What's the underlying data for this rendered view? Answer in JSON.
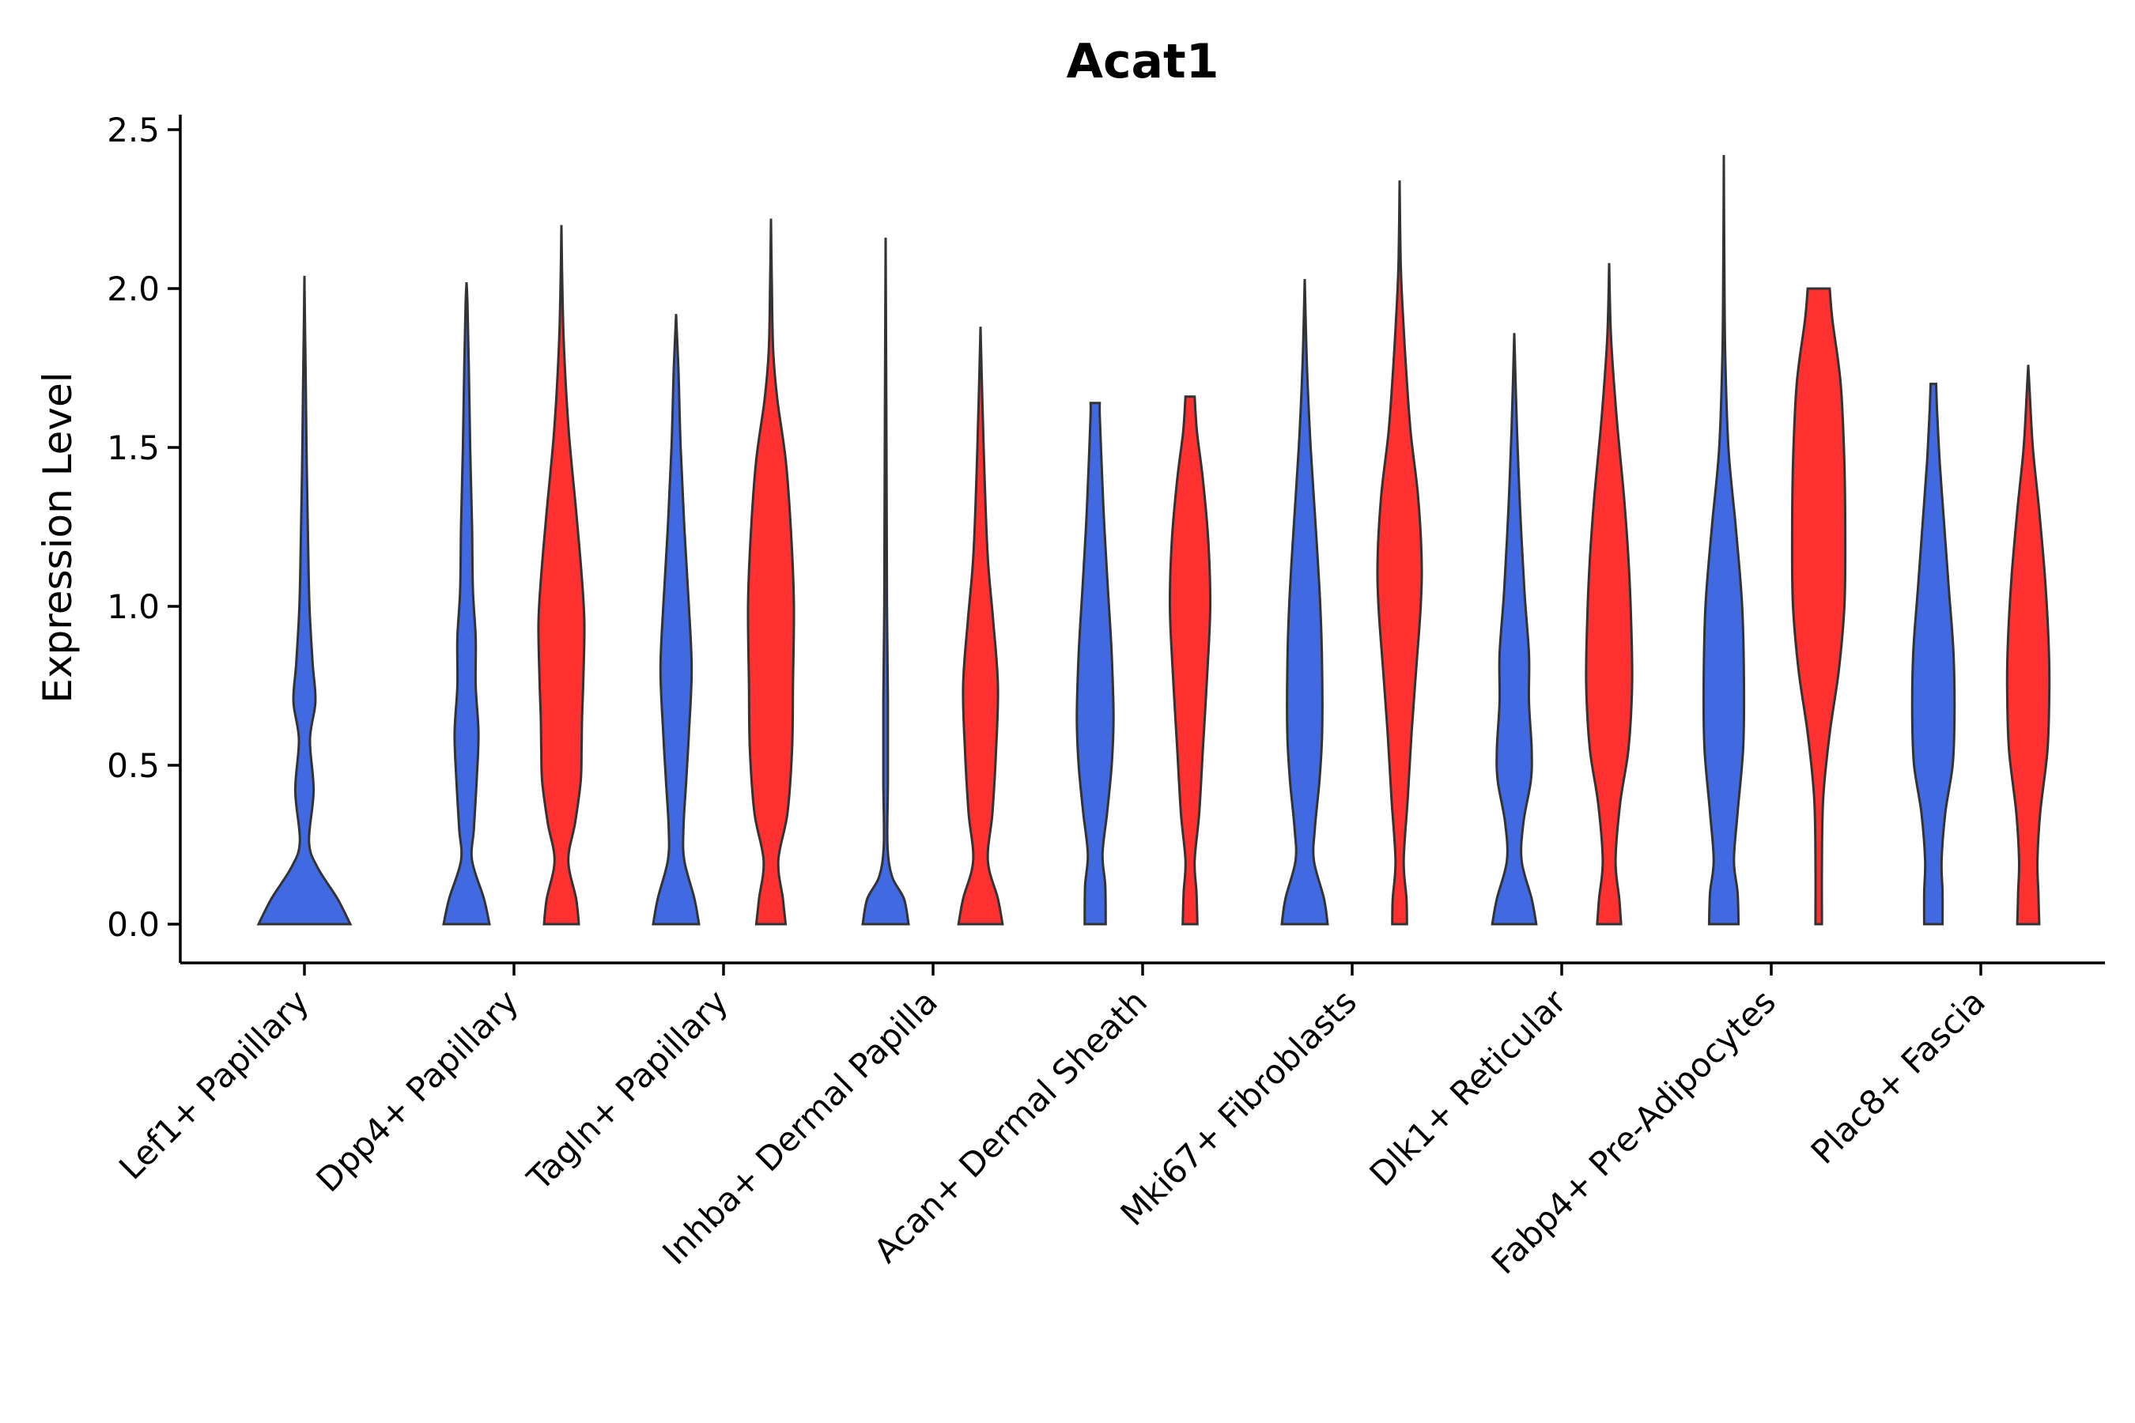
{
  "chart_data": {
    "type": "violin",
    "title": "Acat1",
    "xlabel": "",
    "ylabel": "Expression Level",
    "ylim": [
      -0.12,
      2.55
    ],
    "yticks": [
      "0.0",
      "0.5",
      "1.0",
      "1.5",
      "2.0",
      "2.5"
    ],
    "colors": {
      "blue": "#4169E1",
      "red": "#FF3030"
    },
    "categories": [
      {
        "name": "Lef1+ Papillary",
        "violins": [
          {
            "color": "blue",
            "max": 2.04,
            "profile": [
              [
                0,
                1.0
              ],
              [
                0.08,
                0.72
              ],
              [
                0.18,
                0.28
              ],
              [
                0.26,
                0.1
              ],
              [
                0.42,
                0.2
              ],
              [
                0.58,
                0.12
              ],
              [
                0.7,
                0.24
              ],
              [
                0.82,
                0.18
              ],
              [
                1.0,
                0.11
              ],
              [
                1.2,
                0.08
              ],
              [
                1.45,
                0.05
              ],
              [
                1.7,
                0.03
              ],
              [
                1.85,
                0.015
              ],
              [
                2.04,
                0.0
              ]
            ]
          }
        ]
      },
      {
        "name": "Dpp4+ Papillary",
        "violins": [
          {
            "color": "blue",
            "max": 2.02,
            "profile": [
              [
                0,
                0.5
              ],
              [
                0.08,
                0.38
              ],
              [
                0.2,
                0.12
              ],
              [
                0.3,
                0.16
              ],
              [
                0.45,
                0.22
              ],
              [
                0.6,
                0.26
              ],
              [
                0.75,
                0.2
              ],
              [
                0.9,
                0.2
              ],
              [
                1.05,
                0.14
              ],
              [
                1.25,
                0.12
              ],
              [
                1.5,
                0.08
              ],
              [
                1.75,
                0.05
              ],
              [
                1.95,
                0.02
              ],
              [
                2.02,
                0.0
              ]
            ]
          },
          {
            "color": "red",
            "max": 2.2,
            "profile": [
              [
                0,
                0.38
              ],
              [
                0.08,
                0.32
              ],
              [
                0.2,
                0.15
              ],
              [
                0.32,
                0.3
              ],
              [
                0.45,
                0.42
              ],
              [
                0.55,
                0.44
              ],
              [
                0.65,
                0.45
              ],
              [
                0.78,
                0.48
              ],
              [
                0.95,
                0.5
              ],
              [
                1.1,
                0.44
              ],
              [
                1.3,
                0.32
              ],
              [
                1.55,
                0.16
              ],
              [
                1.8,
                0.06
              ],
              [
                2.0,
                0.02
              ],
              [
                2.2,
                0.0
              ]
            ]
          }
        ]
      },
      {
        "name": "Tagln+ Papillary",
        "violins": [
          {
            "color": "blue",
            "max": 1.92,
            "profile": [
              [
                0,
                0.5
              ],
              [
                0.08,
                0.4
              ],
              [
                0.2,
                0.18
              ],
              [
                0.3,
                0.16
              ],
              [
                0.45,
                0.22
              ],
              [
                0.6,
                0.28
              ],
              [
                0.8,
                0.34
              ],
              [
                1.0,
                0.28
              ],
              [
                1.25,
                0.18
              ],
              [
                1.5,
                0.1
              ],
              [
                1.75,
                0.05
              ],
              [
                1.92,
                0.0
              ]
            ]
          },
          {
            "color": "red",
            "max": 2.22,
            "profile": [
              [
                0,
                0.32
              ],
              [
                0.08,
                0.26
              ],
              [
                0.2,
                0.16
              ],
              [
                0.35,
                0.36
              ],
              [
                0.55,
                0.46
              ],
              [
                0.75,
                0.48
              ],
              [
                1.0,
                0.5
              ],
              [
                1.2,
                0.45
              ],
              [
                1.45,
                0.33
              ],
              [
                1.65,
                0.14
              ],
              [
                1.8,
                0.05
              ],
              [
                2.0,
                0.02
              ],
              [
                2.22,
                0.0
              ]
            ]
          }
        ]
      },
      {
        "name": "Inhba+ Dermal Papilla",
        "violins": [
          {
            "color": "blue",
            "max": 2.16,
            "profile": [
              [
                0,
                0.5
              ],
              [
                0.08,
                0.4
              ],
              [
                0.15,
                0.14
              ],
              [
                0.25,
                0.04
              ],
              [
                0.45,
                0.05
              ],
              [
                0.7,
                0.05
              ],
              [
                1.0,
                0.03
              ],
              [
                1.4,
                0.02
              ],
              [
                1.8,
                0.01
              ],
              [
                2.16,
                0.0
              ]
            ]
          },
          {
            "color": "red",
            "max": 1.88,
            "profile": [
              [
                0,
                0.48
              ],
              [
                0.08,
                0.38
              ],
              [
                0.2,
                0.16
              ],
              [
                0.35,
                0.26
              ],
              [
                0.55,
                0.34
              ],
              [
                0.75,
                0.38
              ],
              [
                0.95,
                0.28
              ],
              [
                1.15,
                0.16
              ],
              [
                1.4,
                0.09
              ],
              [
                1.65,
                0.04
              ],
              [
                1.88,
                0.0
              ]
            ]
          }
        ]
      },
      {
        "name": "Acan+ Dermal Sheath",
        "violins": [
          {
            "color": "blue",
            "max": 1.64,
            "profile": [
              [
                0,
                0.23
              ],
              [
                0.12,
                0.22
              ],
              [
                0.22,
                0.16
              ],
              [
                0.35,
                0.26
              ],
              [
                0.5,
                0.36
              ],
              [
                0.65,
                0.4
              ],
              [
                0.85,
                0.36
              ],
              [
                1.05,
                0.28
              ],
              [
                1.25,
                0.2
              ],
              [
                1.45,
                0.14
              ],
              [
                1.6,
                0.1
              ],
              [
                1.64,
                0.1
              ]
            ]
          },
          {
            "color": "red",
            "max": 1.66,
            "profile": [
              [
                0,
                0.16
              ],
              [
                0.1,
                0.14
              ],
              [
                0.2,
                0.1
              ],
              [
                0.35,
                0.2
              ],
              [
                0.55,
                0.28
              ],
              [
                0.8,
                0.38
              ],
              [
                1.0,
                0.44
              ],
              [
                1.2,
                0.4
              ],
              [
                1.4,
                0.28
              ],
              [
                1.55,
                0.15
              ],
              [
                1.66,
                0.1
              ]
            ]
          }
        ]
      },
      {
        "name": "Mki67+ Fibroblasts",
        "violins": [
          {
            "color": "blue",
            "max": 2.03,
            "profile": [
              [
                0,
                0.5
              ],
              [
                0.08,
                0.42
              ],
              [
                0.2,
                0.2
              ],
              [
                0.3,
                0.22
              ],
              [
                0.45,
                0.32
              ],
              [
                0.6,
                0.38
              ],
              [
                0.8,
                0.38
              ],
              [
                1.0,
                0.34
              ],
              [
                1.25,
                0.24
              ],
              [
                1.5,
                0.13
              ],
              [
                1.75,
                0.05
              ],
              [
                2.03,
                0.0
              ]
            ]
          },
          {
            "color": "red",
            "max": 2.34,
            "profile": [
              [
                0,
                0.16
              ],
              [
                0.08,
                0.15
              ],
              [
                0.2,
                0.09
              ],
              [
                0.4,
                0.18
              ],
              [
                0.6,
                0.26
              ],
              [
                0.8,
                0.36
              ],
              [
                1.0,
                0.46
              ],
              [
                1.15,
                0.48
              ],
              [
                1.35,
                0.4
              ],
              [
                1.55,
                0.24
              ],
              [
                1.75,
                0.14
              ],
              [
                1.95,
                0.06
              ],
              [
                2.1,
                0.02
              ],
              [
                2.34,
                0.0
              ]
            ]
          }
        ]
      },
      {
        "name": "Dlk1+ Reticular",
        "violins": [
          {
            "color": "blue",
            "max": 1.86,
            "profile": [
              [
                0,
                0.48
              ],
              [
                0.08,
                0.38
              ],
              [
                0.2,
                0.16
              ],
              [
                0.32,
                0.2
              ],
              [
                0.45,
                0.36
              ],
              [
                0.55,
                0.38
              ],
              [
                0.7,
                0.32
              ],
              [
                0.85,
                0.32
              ],
              [
                1.05,
                0.22
              ],
              [
                1.3,
                0.13
              ],
              [
                1.55,
                0.06
              ],
              [
                1.86,
                0.0
              ]
            ]
          },
          {
            "color": "red",
            "max": 2.08,
            "profile": [
              [
                0,
                0.26
              ],
              [
                0.08,
                0.22
              ],
              [
                0.2,
                0.14
              ],
              [
                0.38,
                0.24
              ],
              [
                0.55,
                0.42
              ],
              [
                0.75,
                0.5
              ],
              [
                0.95,
                0.48
              ],
              [
                1.15,
                0.42
              ],
              [
                1.35,
                0.32
              ],
              [
                1.6,
                0.16
              ],
              [
                1.85,
                0.04
              ],
              [
                2.08,
                0.0
              ]
            ]
          }
        ]
      },
      {
        "name": "Fabp4+ Pre-Adipocytes",
        "violins": [
          {
            "color": "blue",
            "max": 2.42,
            "profile": [
              [
                0,
                0.32
              ],
              [
                0.1,
                0.3
              ],
              [
                0.2,
                0.22
              ],
              [
                0.35,
                0.3
              ],
              [
                0.55,
                0.42
              ],
              [
                0.75,
                0.44
              ],
              [
                1.0,
                0.4
              ],
              [
                1.25,
                0.26
              ],
              [
                1.5,
                0.1
              ],
              [
                1.8,
                0.03
              ],
              [
                2.1,
                0.01
              ],
              [
                2.42,
                0.0
              ]
            ]
          },
          {
            "color": "red",
            "max": 2.0,
            "profile": [
              [
                0,
                0.07
              ],
              [
                0.2,
                0.07
              ],
              [
                0.4,
                0.1
              ],
              [
                0.6,
                0.24
              ],
              [
                0.8,
                0.44
              ],
              [
                1.0,
                0.56
              ],
              [
                1.2,
                0.58
              ],
              [
                1.45,
                0.56
              ],
              [
                1.7,
                0.48
              ],
              [
                1.9,
                0.3
              ],
              [
                2.0,
                0.24
              ]
            ]
          }
        ]
      },
      {
        "name": "Plac8+ Fascia",
        "violins": [
          {
            "color": "blue",
            "max": 1.7,
            "profile": [
              [
                0,
                0.2
              ],
              [
                0.1,
                0.2
              ],
              [
                0.2,
                0.18
              ],
              [
                0.35,
                0.26
              ],
              [
                0.5,
                0.42
              ],
              [
                0.65,
                0.46
              ],
              [
                0.85,
                0.44
              ],
              [
                1.05,
                0.34
              ],
              [
                1.25,
                0.24
              ],
              [
                1.45,
                0.14
              ],
              [
                1.62,
                0.08
              ],
              [
                1.7,
                0.06
              ]
            ]
          },
          {
            "color": "red",
            "max": 1.76,
            "profile": [
              [
                0,
                0.24
              ],
              [
                0.1,
                0.22
              ],
              [
                0.2,
                0.2
              ],
              [
                0.35,
                0.26
              ],
              [
                0.55,
                0.42
              ],
              [
                0.75,
                0.46
              ],
              [
                0.9,
                0.44
              ],
              [
                1.1,
                0.36
              ],
              [
                1.3,
                0.24
              ],
              [
                1.5,
                0.1
              ],
              [
                1.68,
                0.03
              ],
              [
                1.76,
                0.0
              ]
            ]
          }
        ]
      }
    ]
  }
}
